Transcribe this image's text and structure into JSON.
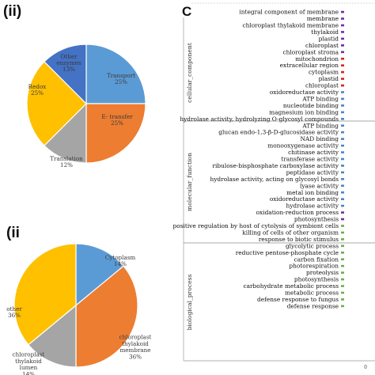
{
  "chart_data": [
    {
      "type": "pie",
      "panel_label": "(ii)",
      "slices": [
        {
          "label": [
            "Transport",
            "25%"
          ],
          "value": 25,
          "color": "#5B9BD5"
        },
        {
          "label": [
            "E- transfer",
            "25%"
          ],
          "value": 25,
          "color": "#ED7D31"
        },
        {
          "label": [
            "Translation",
            "12%"
          ],
          "value": 12.5,
          "color": "#A5A5A5"
        },
        {
          "label": [
            "Redox",
            "25%"
          ],
          "value": 25,
          "color": "#FFC000"
        },
        {
          "label": [
            "Other",
            "enzymes",
            "13%"
          ],
          "value": 12.5,
          "color": "#4472C4"
        }
      ]
    },
    {
      "type": "pie",
      "panel_label": "(ii",
      "slices": [
        {
          "label": [
            "Cytoplasm",
            "14%"
          ],
          "value": 14,
          "color": "#5B9BD5"
        },
        {
          "label": [
            "chloroplast",
            "thylakoid",
            "membrane",
            "36%"
          ],
          "value": 36,
          "color": "#ED7D31"
        },
        {
          "label": [
            "chloroplast",
            "thylakoid",
            "lumen",
            "14%"
          ],
          "value": 14,
          "color": "#A5A5A5"
        },
        {
          "label": [
            "other",
            "36%"
          ],
          "value": 36,
          "color": "#FFC000"
        }
      ]
    },
    {
      "type": "bar",
      "panel_label": "C",
      "xlim": [
        0,
        1
      ],
      "xticks": [
        "0"
      ],
      "groups": [
        {
          "name": "cellular_component",
          "color": "#7030A0",
          "terms": [
            "integral component of membrane",
            "membrane",
            "chloroplast thylakoid membrane",
            "thylakoid",
            "plastid",
            "chloroplast",
            "chloroplast stroma"
          ],
          "values": [
            1,
            1,
            1,
            1,
            1,
            1,
            1
          ]
        },
        {
          "name": "cellular_component",
          "color": "#E02020",
          "terms": [
            "mitochondrion",
            "extracellular region",
            "cytoplasm",
            "plastid",
            "chloroplast"
          ],
          "values": [
            1,
            1,
            1,
            1,
            1
          ]
        },
        {
          "name": "molecular_function",
          "color": "#4A86C8",
          "terms": [
            "oxidoreductase activity",
            "ATP binding",
            "nucleotide binding",
            "magnesium ion binding",
            "hydrolase activity, hydrolyzing O-glycosyl compounds",
            "ATP binding",
            "glucan endo-1,3-β-D-glucosidase activity",
            "NAD binding",
            "monooxygenase activity",
            "chitinase activity",
            "transferase activity",
            "ribulose-bisphosphate carboxylase activity",
            "peptidase activity",
            "hydrolase activity, acting on glycosyl bonds",
            "lyase activity",
            "metal ion binding",
            "oxidoreductase activity",
            "hydrolase activity"
          ],
          "values": [
            1,
            1,
            1,
            1,
            1,
            1,
            1,
            1,
            1,
            1,
            1,
            1,
            1,
            1,
            1,
            1,
            1,
            1
          ]
        },
        {
          "name": "biological_process",
          "color": "#7030A0",
          "terms": [
            "oxidation-reduction process",
            "photosynthesis"
          ],
          "values": [
            1,
            1
          ]
        },
        {
          "name": "biological_process",
          "color": "#70AD47",
          "terms": [
            "positive regulation by host of cytolysis of symbiont cells",
            "killing of cells of other organism",
            "response to biotic stimulus",
            "glycolytic process",
            "reductive pentose-phosphate cycle",
            "carbon fixation",
            "photorespiration",
            "proteolysis",
            "photosynthesis",
            "carbohydrate metabolic process",
            "metabolic process",
            "defense response to fungus",
            "defense response"
          ],
          "values": [
            1,
            1,
            1,
            1,
            1,
            1,
            1,
            1,
            1,
            1,
            1,
            1,
            1
          ]
        }
      ]
    }
  ]
}
